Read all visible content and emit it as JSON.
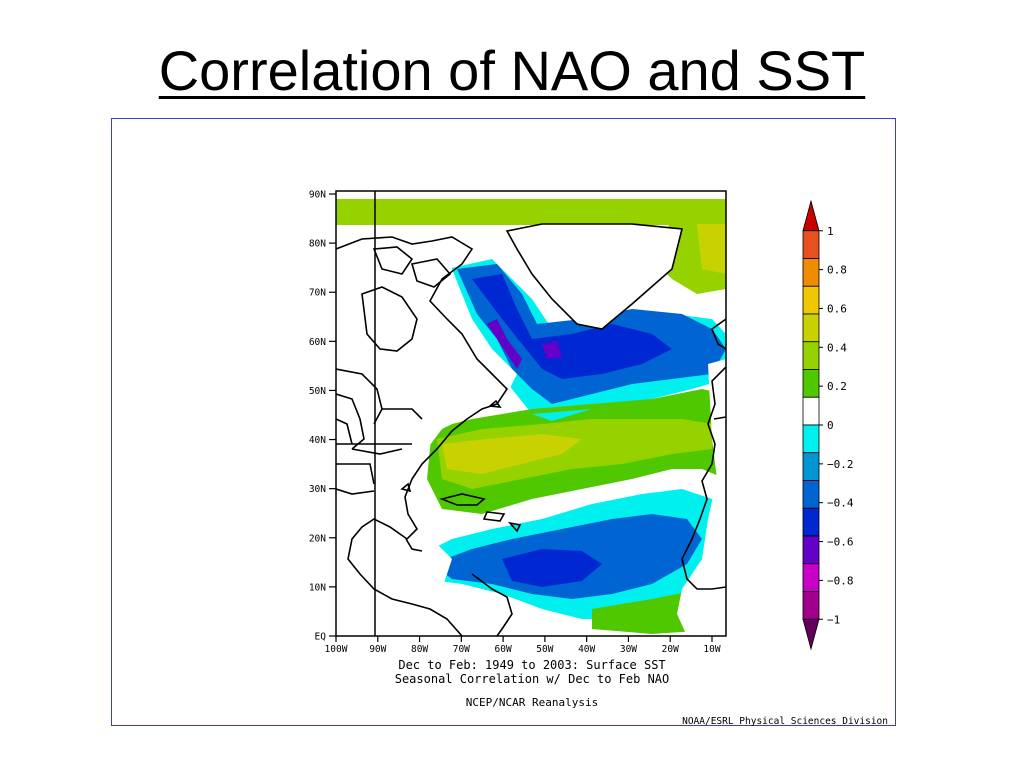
{
  "slide": {
    "title": "Correlation of NAO and SST"
  },
  "map": {
    "lat_labels": [
      "90N",
      "80N",
      "70N",
      "60N",
      "50N",
      "40N",
      "30N",
      "20N",
      "10N",
      "EQ"
    ],
    "lon_labels": [
      "100W",
      "90W",
      "80W",
      "70W",
      "60W",
      "50W",
      "40W",
      "30W",
      "20W",
      "10W"
    ],
    "caption_line1": "Dec to Feb: 1949 to 2003: Surface SST",
    "caption_line2": "Seasonal Correlation w/ Dec to Feb NAO",
    "caption_line3": "NCEP/NCAR Reanalysis",
    "credit": "NOAA/ESRL Physical Sciences Division",
    "marker_longitude": "90W"
  },
  "colorbar": {
    "labels": [
      "1",
      "0.8",
      "0.6",
      "0.4",
      "0.2",
      "0",
      "−0.2",
      "−0.4",
      "−0.6",
      "−0.8",
      "−1"
    ],
    "colors": [
      "#c80000",
      "#e8501e",
      "#f08c00",
      "#f0c800",
      "#c8d200",
      "#96d200",
      "#50c800",
      "#ffffff",
      "#00f0f0",
      "#0096d2",
      "#0064d2",
      "#0028d2",
      "#6400c8",
      "#c800c8",
      "#a0008c",
      "#64005a"
    ]
  },
  "legend_colors": {
    "land": "#ffffff",
    "coast": "#000000",
    "strong_negative": "#0028d2",
    "negative": "#0064d2",
    "weak_negative": "#00f0f0",
    "weak_positive": "#50c800",
    "positive": "#96d200",
    "strong_positive": "#c8d200"
  }
}
